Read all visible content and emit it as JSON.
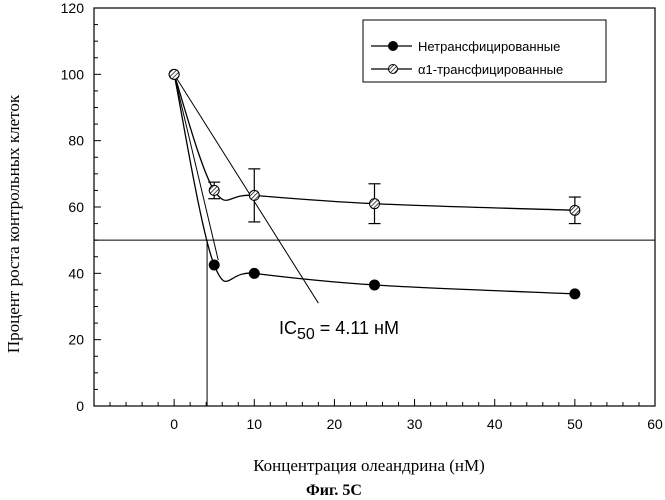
{
  "chart_data": {
    "type": "line",
    "title": "",
    "xlabel": "Концентрация олеандрина (нМ)",
    "ylabel": "Процент роста контрольных клеток",
    "xlim": [
      -10,
      60
    ],
    "ylim": [
      0,
      120
    ],
    "x_ticks": [
      0,
      10,
      20,
      30,
      40,
      50,
      60
    ],
    "y_ticks": [
      0,
      20,
      40,
      60,
      80,
      100,
      120
    ],
    "grid": false,
    "legend_position": "top-right",
    "series": [
      {
        "name": "Нетрансфицированные",
        "marker": "filled-circle",
        "x": [
          0,
          5,
          10,
          25,
          50
        ],
        "y": [
          100,
          42.5,
          40,
          36.5,
          33.8
        ],
        "error": null
      },
      {
        "name": "α1-трансфицированные",
        "marker": "hatched-circle",
        "x": [
          0,
          5,
          10,
          25,
          50
        ],
        "y": [
          100,
          65,
          63.5,
          61,
          59
        ],
        "error": [
          0,
          2.5,
          8,
          6,
          4
        ]
      }
    ],
    "reference_lines": {
      "horizontal_y": 50,
      "vertical_x": 4.11
    },
    "tangent_lines": [
      {
        "from": [
          0,
          100
        ],
        "to": [
          5.5,
          44
        ]
      },
      {
        "from": [
          0,
          100
        ],
        "to": [
          18,
          31
        ]
      }
    ],
    "annotation": {
      "prefix": "IC",
      "subscript": "50",
      "suffix": " = 4.11 нМ",
      "at": [
        11.3,
        24
      ]
    }
  },
  "caption": "Фиг. 5C"
}
